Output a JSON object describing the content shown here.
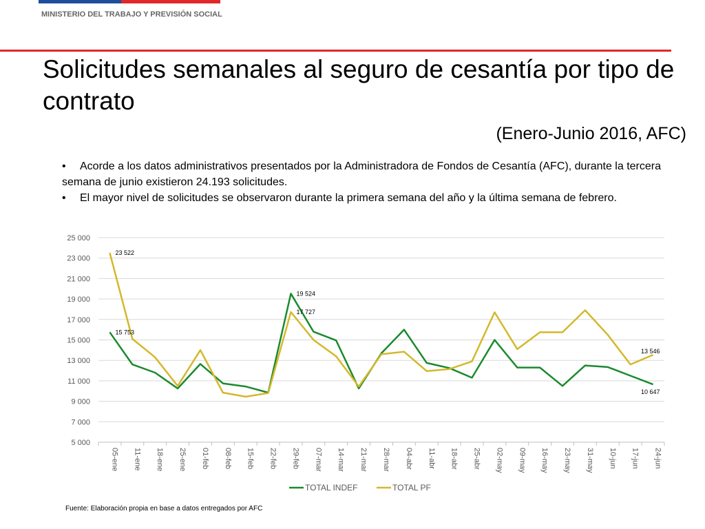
{
  "header": {
    "ministry": "MINISTERIO DEL TRABAJO Y PREVISIÓN SOCIAL",
    "flag_colors": {
      "blue": "#1f4e9c",
      "red": "#e0282c"
    }
  },
  "slide": {
    "title": "Solicitudes semanales al seguro de cesantía por tipo de contrato",
    "subtitle": "(Enero-Junio 2016, AFC)",
    "bullets": [
      "Acorde a los datos administrativos presentados por la Administradora de Fondos de Cesantía (AFC), durante la tercera semana de junio existieron 24.193 solicitudes.",
      "El mayor nivel de solicitudes se observaron durante la primera semana del año y la última semana de febrero."
    ],
    "bullet_symbol": "•",
    "source": "Fuente: Elaboración propia en base a datos entregados por AFC"
  },
  "chart_data": {
    "type": "line",
    "categories": [
      "05-ene",
      "11-ene",
      "18-ene",
      "25-ene",
      "01-feb",
      "08-feb",
      "15-feb",
      "22-feb",
      "29-feb",
      "07-mar",
      "14-mar",
      "21-mar",
      "28-mar",
      "04-abr",
      "11-abr",
      "18-abr",
      "25-abr",
      "02-may",
      "09-may",
      "16-may",
      "23-may",
      "31-may",
      "10-jun",
      "17-jun",
      "24-jun"
    ],
    "ylim": [
      5000,
      25000
    ],
    "yticks": [
      "5 000",
      "7 000",
      "9 000",
      "11 000",
      "13 000",
      "15 000",
      "17 000",
      "19 000",
      "21 000",
      "23 000",
      "25 000"
    ],
    "grid": true,
    "legend_position": "bottom",
    "series": [
      {
        "name": "TOTAL INDEF",
        "color": "#1a8a2e",
        "values": [
          15753,
          12600,
          11800,
          10250,
          12650,
          10750,
          10450,
          9850,
          19524,
          15800,
          14950,
          10250,
          13700,
          16000,
          12750,
          12250,
          11300,
          15000,
          12300,
          12300,
          10500,
          12500,
          12350,
          11500,
          10647
        ]
      },
      {
        "name": "TOTAL PF",
        "color": "#d4b82a",
        "values": [
          23522,
          15100,
          13300,
          10500,
          14000,
          9850,
          9450,
          9800,
          17727,
          15000,
          13400,
          10450,
          13600,
          13850,
          11950,
          12150,
          12900,
          17700,
          14100,
          15750,
          15750,
          17900,
          15500,
          12600,
          13546
        ]
      }
    ],
    "data_labels": [
      {
        "series": 0,
        "index": 0,
        "text": "15 753"
      },
      {
        "series": 1,
        "index": 0,
        "text": "23 522"
      },
      {
        "series": 0,
        "index": 8,
        "text": "19 524"
      },
      {
        "series": 1,
        "index": 8,
        "text": "17 727"
      },
      {
        "series": 1,
        "index": 24,
        "text": "13 546"
      },
      {
        "series": 0,
        "index": 24,
        "text": "10 647"
      }
    ]
  }
}
